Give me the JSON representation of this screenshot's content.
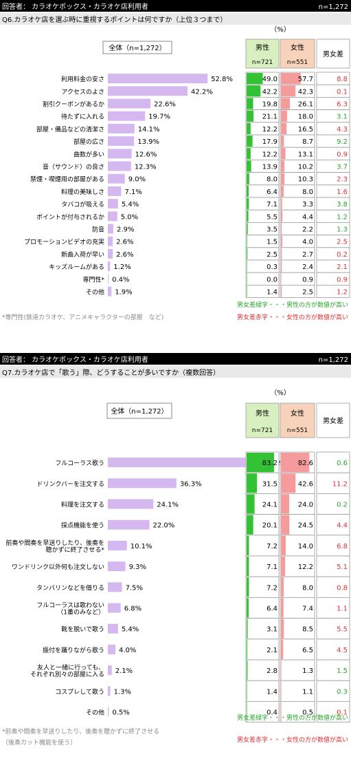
{
  "panels": [
    {
      "header": {
        "respondent": "回答者： カラオケボックス・カラオケ店利用者",
        "n": "n=1,272"
      },
      "question": "Q6.カラオケ店を選ぶ時に重視するポイントは何ですか（上位３つまで）",
      "unit": "（%）",
      "total_label": "全体（n=1,272）",
      "col_male": "男性",
      "col_male_n": "n=721",
      "col_female": "女性",
      "col_female_n": "n=551",
      "col_diff": "男女差",
      "legend_green": "男女差緑字・・・男性の方が数値が高い",
      "legend_red": "男女差赤字・・・女性の方が数値が高い",
      "footnote": "*専門性(鉄道カラオケ、アニメキャラクターの部屋　など)"
    },
    {
      "header": {
        "respondent": "回答者： カラオケボックス・カラオケ店利用者",
        "n": "n=1,272"
      },
      "question": "Q7.カラオケ店で「歌う」際、どうすることが多いですか（複数回答）",
      "unit": "（%）",
      "total_label": "全体（n=1,272）",
      "col_male": "男性",
      "col_male_n": "n=721",
      "col_female": "女性",
      "col_female_n": "n=551",
      "col_diff": "男女差",
      "legend_green": "男女差緑字・・・男性の方が数値が高い",
      "legend_red": "男女差赤字・・・女性の方が数値が高い",
      "footnote": "*前奏や間奏を早送りしたり、後奏を聴かずに終了させる（後奏カット機能を使う）"
    }
  ],
  "colors": {
    "header_bg": "#000000",
    "question_bg": "#e9e9e9",
    "total_bar": "#d6b8f0",
    "male_bar": "#33c233",
    "female_bar": "#f59b9b",
    "male_head_bg": "#d8f0c0",
    "female_head_bg": "#f8d3bc",
    "green_text": "#2aa52a",
    "red_text": "#e03030"
  },
  "chart_data": [
    {
      "type": "bar",
      "categories": [
        "利用料金の安さ",
        "アクセスのよさ",
        "割引クーポンがあるか",
        "待たずに入れる",
        "部屋・備品などの清潔さ",
        "部屋の広さ",
        "曲数が多い",
        "音（サウンド）の良さ",
        "禁煙・喫煙用の部屋がある",
        "料理の美味しさ",
        "タバコが吸える",
        "ポイントが付与されるか",
        "防音",
        "プロモーションビデオの充実",
        "新曲入荷が早い",
        "キッズルームがある",
        "専門性*",
        "その他"
      ],
      "series": [
        {
          "name": "全体（n=1,272）",
          "values": [
            52.8,
            42.2,
            22.6,
            19.7,
            14.1,
            13.9,
            12.6,
            12.3,
            9.0,
            7.1,
            5.4,
            5.0,
            2.9,
            2.6,
            2.6,
            1.2,
            0.4,
            1.9
          ],
          "labels": [
            "52.8%",
            "42.2%",
            "22.6%",
            "19.7%",
            "14.1%",
            "13.9%",
            "12.6%",
            "12.3%",
            "9.0%",
            "7.1%",
            "5.4%",
            "5.0%",
            "2.9%",
            "2.6%",
            "2.6%",
            "1.2%",
            "0.4%",
            "1.9%"
          ]
        },
        {
          "name": "男性",
          "values": [
            49.0,
            42.2,
            19.8,
            21.1,
            12.2,
            17.9,
            12.2,
            13.9,
            8.0,
            6.4,
            7.1,
            5.5,
            3.5,
            1.5,
            2.5,
            0.3,
            0.0,
            1.4
          ],
          "labels": [
            "49.0",
            "42.2",
            "19.8",
            "21.1",
            "12.2",
            "17.9",
            "12.2",
            "13.9",
            "8.0",
            "6.4",
            "7.1",
            "5.5",
            "3.5",
            "1.5",
            "2.5",
            "0.3",
            "0.0",
            "1.4"
          ]
        },
        {
          "name": "女性",
          "values": [
            57.7,
            42.3,
            26.1,
            18.0,
            16.5,
            8.7,
            13.1,
            10.2,
            10.3,
            8.0,
            3.3,
            4.4,
            2.2,
            4.0,
            2.7,
            2.4,
            0.9,
            2.5
          ],
          "labels": [
            "57.7",
            "42.3",
            "26.1",
            "18.0",
            "16.5",
            "8.7",
            "13.1",
            "10.2",
            "10.3",
            "8.0",
            "3.3",
            "4.4",
            "2.2",
            "4.0",
            "2.7",
            "2.4",
            "0.9",
            "2.5"
          ]
        },
        {
          "name": "男女差",
          "values": [
            8.8,
            0.1,
            6.3,
            3.1,
            4.3,
            9.2,
            0.9,
            3.7,
            2.3,
            1.6,
            3.8,
            1.2,
            1.3,
            2.5,
            0.2,
            2.1,
            0.9,
            1.2
          ],
          "labels": [
            "8.8",
            "0.1",
            "6.3",
            "3.1",
            "4.3",
            "9.2",
            "0.9",
            "3.7",
            "2.3",
            "1.6",
            "3.8",
            "1.2",
            "1.3",
            "2.5",
            "0.2",
            "2.1",
            "0.9",
            "1.2"
          ],
          "colors": [
            "red",
            "red",
            "red",
            "green",
            "red",
            "green",
            "red",
            "green",
            "red",
            "red",
            "green",
            "green",
            "green",
            "red",
            "red",
            "red",
            "red",
            "red"
          ]
        }
      ]
    },
    {
      "type": "bar",
      "categories": [
        "フルコーラス歌う",
        "ドリンクバーを注文する",
        "料理を注文する",
        "採点機能を使う",
        "前奏や間奏を早送りしたり、後奏を聴かずに終了させる*",
        "ワンドリンク以外何も注文しない",
        "タンバリンなどを借りる",
        "フルコーラスは歌わない（1番のみなど）",
        "靴を脱いで歌う",
        "振付を踊りながら歌う",
        "友人と一緒に行っても、それぞれ別々の部屋に入る",
        "コスプレして歌う",
        "その他"
      ],
      "category_lines": [
        [
          "フルコーラス歌う"
        ],
        [
          "ドリンクバーを注文する"
        ],
        [
          "料理を注文する"
        ],
        [
          "採点機能を使う"
        ],
        [
          "前奏や間奏を早送りしたり、後奏を",
          "聴かずに終了させる*"
        ],
        [
          "ワンドリンク以外何も注文しない"
        ],
        [
          "タンバリンなどを借りる"
        ],
        [
          "フルコーラスは歌わない",
          "（1番のみなど）"
        ],
        [
          "靴を脱いで歌う"
        ],
        [
          "振付を踊りながら歌う"
        ],
        [
          "友人と一緒に行っても、",
          "それぞれ別々の部屋に入る"
        ],
        [
          "コスプレして歌う"
        ],
        [
          "その他"
        ]
      ],
      "series": [
        {
          "name": "全体（n=1,272）",
          "values": [
            82.9,
            36.3,
            24.1,
            22.0,
            10.1,
            9.3,
            7.5,
            6.8,
            5.4,
            4.0,
            2.1,
            1.3,
            0.5
          ],
          "labels": [
            "82.9%",
            "36.3%",
            "24.1%",
            "22.0%",
            "10.1%",
            "9.3%",
            "7.5%",
            "6.8%",
            "5.4%",
            "4.0%",
            "2.1%",
            "1.3%",
            "0.5%"
          ]
        },
        {
          "name": "男性",
          "values": [
            83.2,
            31.5,
            24.1,
            20.1,
            7.2,
            7.1,
            7.2,
            6.4,
            3.1,
            2.1,
            2.8,
            1.4,
            0.4
          ],
          "labels": [
            "83.2",
            "31.5",
            "24.1",
            "20.1",
            "7.2",
            "7.1",
            "7.2",
            "6.4",
            "3.1",
            "2.1",
            "2.8",
            "1.4",
            "0.4"
          ]
        },
        {
          "name": "女性",
          "values": [
            82.6,
            42.6,
            24.0,
            24.5,
            14.0,
            12.2,
            8.0,
            7.4,
            8.5,
            6.5,
            1.3,
            1.1,
            0.5
          ],
          "labels": [
            "82.6",
            "42.6",
            "24.0",
            "24.5",
            "14.0",
            "12.2",
            "8.0",
            "7.4",
            "8.5",
            "6.5",
            "1.3",
            "1.1",
            "0.5"
          ]
        },
        {
          "name": "男女差",
          "values": [
            0.6,
            11.2,
            0.2,
            4.4,
            6.8,
            5.1,
            0.8,
            1.1,
            5.5,
            4.5,
            1.5,
            0.3,
            0.1
          ],
          "labels": [
            "0.6",
            "11.2",
            "0.2",
            "4.4",
            "6.8",
            "5.1",
            "0.8",
            "1.1",
            "5.5",
            "4.5",
            "1.5",
            "0.3",
            "0.1"
          ],
          "colors": [
            "green",
            "red",
            "green",
            "red",
            "red",
            "red",
            "red",
            "red",
            "red",
            "red",
            "green",
            "green",
            "red"
          ]
        }
      ]
    }
  ]
}
